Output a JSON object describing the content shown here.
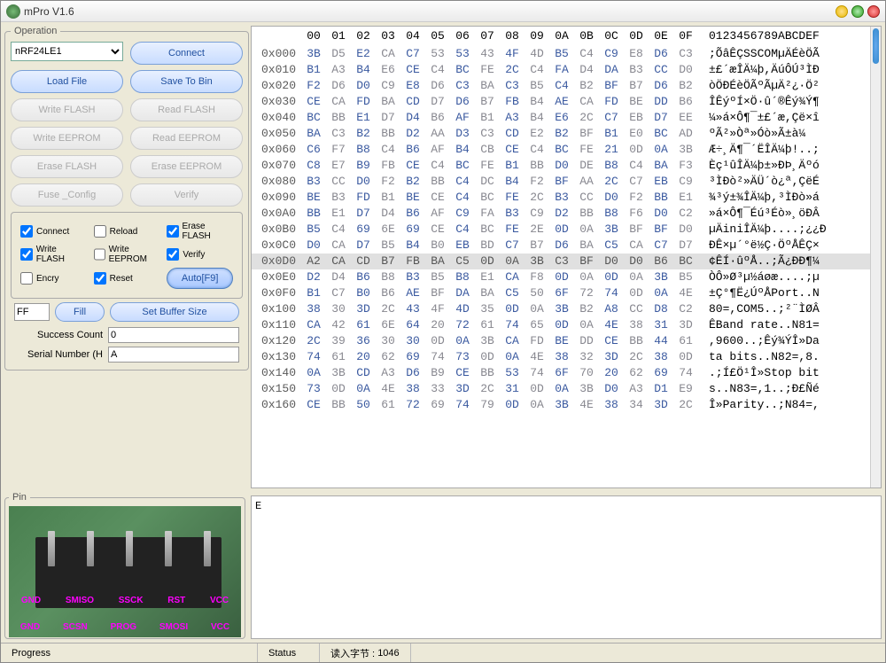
{
  "titlebar": {
    "title": "mPro  V1.6"
  },
  "operation": {
    "legend": "Operation",
    "device": "nRF24LE1",
    "connect": "Connect",
    "loadfile": "Load File",
    "savebin": "Save To Bin",
    "writeflash": "Write FLASH",
    "readflash": "Read FLASH",
    "writeeeprom": "Write EEPROM",
    "readeeprom": "Read EEPROM",
    "eraseflash": "Erase FLASH",
    "eraseeeprom": "Erase EEPROM",
    "fuseconfig": "Fuse _Config",
    "verify": "Verify"
  },
  "options": {
    "connect": "Connect",
    "reload": "Reload",
    "eraseflash": "Erase FLASH",
    "writeflash": "Write FLASH",
    "writeeeprom": "Write EEPROM",
    "verify": "Verify",
    "encry": "Encry",
    "reset": "Reset",
    "auto": "Auto[F9]"
  },
  "fillrow": {
    "value": "FF",
    "fill": "Fill",
    "setbuf": "Set Buffer Size"
  },
  "counters": {
    "success_label": "Success Count",
    "success_value": "0",
    "serial_label": "Serial Number (H",
    "serial_value": "A"
  },
  "pin": {
    "legend": "Pin",
    "top_labels": [
      "GND",
      "SMISO",
      "SSCK",
      "RST",
      "VCC"
    ],
    "bot_labels": [
      "GND",
      "SCSN",
      "PROG",
      "SMOSI",
      "VCC"
    ]
  },
  "log": {
    "text": "E"
  },
  "status": {
    "progress": "Progress",
    "status_label": "Status",
    "read_label": "读入字节 :",
    "read_value": "1046"
  },
  "hex": {
    "header_ascii": "0123456789ABCDEF",
    "selected_row": 13,
    "rows": [
      {
        "addr": "0x000",
        "b": [
          "3B",
          "D5",
          "E2",
          "CA",
          "C7",
          "53",
          "53",
          "43",
          "4F",
          "4D",
          "B5",
          "C4",
          "C9",
          "E8",
          "D6",
          "C3"
        ],
        "a": ";ÕâÊÇSSCOMµÄÉèÖÃ"
      },
      {
        "addr": "0x010",
        "b": [
          "B1",
          "A3",
          "B4",
          "E6",
          "CE",
          "C4",
          "BC",
          "FE",
          "2C",
          "C4",
          "FA",
          "D4",
          "DA",
          "B3",
          "CC",
          "D0"
        ],
        "a": "±£´æÎÄ¼þ,ÄúÔÚ³ÌÐ"
      },
      {
        "addr": "0x020",
        "b": [
          "F2",
          "D6",
          "D0",
          "C9",
          "E8",
          "D6",
          "C3",
          "BA",
          "C3",
          "B5",
          "C4",
          "B2",
          "BF",
          "B7",
          "D6",
          "B2"
        ],
        "a": "òÖÐÉèÖÃºÃµÄ²¿·Ö²"
      },
      {
        "addr": "0x030",
        "b": [
          "CE",
          "CA",
          "FD",
          "BA",
          "CD",
          "D7",
          "D6",
          "B7",
          "FB",
          "B4",
          "AE",
          "CA",
          "FD",
          "BE",
          "DD",
          "B6"
        ],
        "a": "ÎÊýºÍ×Ö·û´®Êý¾Ý¶"
      },
      {
        "addr": "0x040",
        "b": [
          "BC",
          "BB",
          "E1",
          "D7",
          "D4",
          "B6",
          "AF",
          "B1",
          "A3",
          "B4",
          "E6",
          "2C",
          "C7",
          "EB",
          "D7",
          "EE"
        ],
        "a": "¼»á×Ô¶¯±£´æ,Çë×î"
      },
      {
        "addr": "0x050",
        "b": [
          "BA",
          "C3",
          "B2",
          "BB",
          "D2",
          "AA",
          "D3",
          "C3",
          "CD",
          "E2",
          "B2",
          "BF",
          "B1",
          "E0",
          "BC",
          "AD"
        ],
        "a": "ºÃ²»Òª»Óò»Ã±à¼­"
      },
      {
        "addr": "0x060",
        "b": [
          "C6",
          "F7",
          "B8",
          "C4",
          "B6",
          "AF",
          "B4",
          "CB",
          "CE",
          "C4",
          "BC",
          "FE",
          "21",
          "0D",
          "0A",
          "3B"
        ],
        "a": "Æ÷¸Ä¶¯´ËÎÄ¼þ!..;"
      },
      {
        "addr": "0x070",
        "b": [
          "C8",
          "E7",
          "B9",
          "FB",
          "CE",
          "C4",
          "BC",
          "FE",
          "B1",
          "BB",
          "D0",
          "DE",
          "B8",
          "C4",
          "BA",
          "F3"
        ],
        "a": "Èç¹ûÎÄ¼þ±»ÐÞ¸Äºó"
      },
      {
        "addr": "0x080",
        "b": [
          "B3",
          "CC",
          "D0",
          "F2",
          "B2",
          "BB",
          "C4",
          "DC",
          "B4",
          "F2",
          "BF",
          "AA",
          "2C",
          "C7",
          "EB",
          "C9"
        ],
        "a": "³ÌÐò²»ÄÜ´ò¿ª,ÇëÉ"
      },
      {
        "addr": "0x090",
        "b": [
          "BE",
          "B3",
          "FD",
          "B1",
          "BE",
          "CE",
          "C4",
          "BC",
          "FE",
          "2C",
          "B3",
          "CC",
          "D0",
          "F2",
          "BB",
          "E1"
        ],
        "a": "¾³ý±¾ÎÄ¼þ,³ÌÐò»á"
      },
      {
        "addr": "0x0A0",
        "b": [
          "BB",
          "E1",
          "D7",
          "D4",
          "B6",
          "AF",
          "C9",
          "FA",
          "B3",
          "C9",
          "D2",
          "BB",
          "B8",
          "F6",
          "D0",
          "C2"
        ],
        "a": "»á×Ô¶¯Éú³Éò»¸öÐÂ"
      },
      {
        "addr": "0x0B0",
        "b": [
          "B5",
          "C4",
          "69",
          "6E",
          "69",
          "CE",
          "C4",
          "BC",
          "FE",
          "2E",
          "0D",
          "0A",
          "3B",
          "BF",
          "BF",
          "D0"
        ],
        "a": "µÄiniÎÄ¼þ....;¿¿Ð"
      },
      {
        "addr": "0x0C0",
        "b": [
          "D0",
          "CA",
          "D7",
          "B5",
          "B4",
          "B0",
          "EB",
          "BD",
          "C7",
          "B7",
          "D6",
          "BA",
          "C5",
          "CA",
          "C7",
          "D7"
        ],
        "a": "ÐÊ×µ´°ë½Ç·ÖºÅÊÇ×"
      },
      {
        "addr": "0x0D0",
        "b": [
          "A2",
          "CA",
          "CD",
          "B7",
          "FB",
          "BA",
          "C5",
          "0D",
          "0A",
          "3B",
          "C3",
          "BF",
          "D0",
          "D0",
          "B6",
          "BC"
        ],
        "a": "¢ÊÍ·ûºÅ..;Ã¿ÐÐ¶¼"
      },
      {
        "addr": "0x0E0",
        "b": [
          "D2",
          "D4",
          "B6",
          "B8",
          "B3",
          "B5",
          "B8",
          "E1",
          "CA",
          "F8",
          "0D",
          "0A",
          "0D",
          "0A",
          "3B",
          "B5"
        ],
        "a": "ÒÔ»Ø³µ½áøæ....;µ"
      },
      {
        "addr": "0x0F0",
        "b": [
          "B1",
          "C7",
          "B0",
          "B6",
          "AE",
          "BF",
          "DA",
          "BA",
          "C5",
          "50",
          "6F",
          "72",
          "74",
          "0D",
          "0A",
          "4E"
        ],
        "a": "±Ç°¶Ë¿ÚºÅPort..N"
      },
      {
        "addr": "0x100",
        "b": [
          "38",
          "30",
          "3D",
          "2C",
          "43",
          "4F",
          "4D",
          "35",
          "0D",
          "0A",
          "3B",
          "B2",
          "A8",
          "CC",
          "D8",
          "C2"
        ],
        "a": "80=,COM5..;²¨ÌØÂ"
      },
      {
        "addr": "0x110",
        "b": [
          "CA",
          "42",
          "61",
          "6E",
          "64",
          "20",
          "72",
          "61",
          "74",
          "65",
          "0D",
          "0A",
          "4E",
          "38",
          "31",
          "3D"
        ],
        "a": "ÊBand rate..N81="
      },
      {
        "addr": "0x120",
        "b": [
          "2C",
          "39",
          "36",
          "30",
          "30",
          "0D",
          "0A",
          "3B",
          "CA",
          "FD",
          "BE",
          "DD",
          "CE",
          "BB",
          "44",
          "61"
        ],
        "a": ",9600..;Êý¾ÝÎ»Da"
      },
      {
        "addr": "0x130",
        "b": [
          "74",
          "61",
          "20",
          "62",
          "69",
          "74",
          "73",
          "0D",
          "0A",
          "4E",
          "38",
          "32",
          "3D",
          "2C",
          "38",
          "0D"
        ],
        "a": "ta bits..N82=,8."
      },
      {
        "addr": "0x140",
        "b": [
          "0A",
          "3B",
          "CD",
          "A3",
          "D6",
          "B9",
          "CE",
          "BB",
          "53",
          "74",
          "6F",
          "70",
          "20",
          "62",
          "69",
          "74"
        ],
        "a": ".;Í£Ö¹Î»Stop bit"
      },
      {
        "addr": "0x150",
        "b": [
          "73",
          "0D",
          "0A",
          "4E",
          "38",
          "33",
          "3D",
          "2C",
          "31",
          "0D",
          "0A",
          "3B",
          "D0",
          "A3",
          "D1",
          "E9"
        ],
        "a": "s..N83=,1..;Ð£Ñé"
      },
      {
        "addr": "0x160",
        "b": [
          "CE",
          "BB",
          "50",
          "61",
          "72",
          "69",
          "74",
          "79",
          "0D",
          "0A",
          "3B",
          "4E",
          "38",
          "34",
          "3D",
          "2C"
        ],
        "a": "Î»Parity..;N84=,"
      }
    ]
  }
}
